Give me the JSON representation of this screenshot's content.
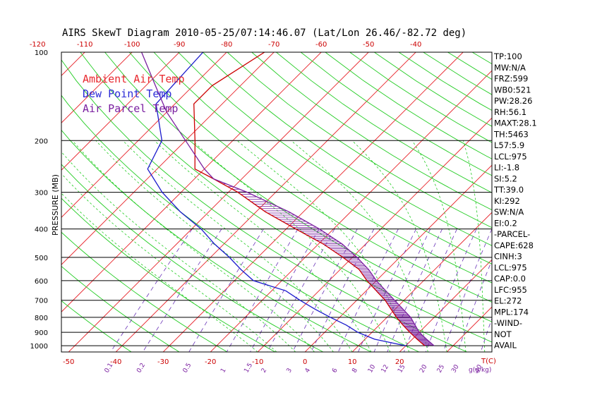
{
  "chart_data": {
    "type": "line",
    "title": "AIRS SkewT Diagram 2010-05-25/07:14:46.07 (Lat/Lon 26.46/-82.72 deg)",
    "ylabel": "PRESSURE (MB)",
    "xlabel": "T(C)",
    "mixing_ratio_label": "g(g/kg)",
    "y_ticks": [
      "100",
      "200",
      "300",
      "400",
      "500",
      "600",
      "700",
      "800",
      "900",
      "1000"
    ],
    "top_ticks": [
      "-120",
      "-110",
      "-100",
      "-90",
      "-80",
      "-70",
      "-60",
      "-50",
      "-40"
    ],
    "bottom_ticks": [
      "-50",
      "-40",
      "-30",
      "-20",
      "-10",
      "0",
      "10",
      "20"
    ],
    "mixing_ratio_ticks": [
      "0.1",
      "0.2",
      "0.5",
      "1",
      "1.5",
      "2",
      "3",
      "4",
      "6",
      "8",
      "10",
      "12",
      "15",
      "20",
      "25",
      "30",
      "40"
    ],
    "legend": [
      {
        "label": "Ambient Air Temp",
        "color": "#e8282e"
      },
      {
        "label": "Dew Point Temp",
        "color": "#2b2bd6"
      },
      {
        "label": "Air Parcel Temp",
        "color": "#7a1fa0"
      }
    ],
    "series": [
      {
        "name": "Ambient Air Temp",
        "color": "#cc0000",
        "points": [
          [
            100,
            -72
          ],
          [
            130,
            -76
          ],
          [
            150,
            -76
          ],
          [
            200,
            -68
          ],
          [
            250,
            -62
          ],
          [
            270,
            -56
          ],
          [
            300,
            -48
          ],
          [
            350,
            -38
          ],
          [
            400,
            -28
          ],
          [
            450,
            -19
          ],
          [
            500,
            -12
          ],
          [
            550,
            -6
          ],
          [
            600,
            -2
          ],
          [
            700,
            6
          ],
          [
            800,
            12
          ],
          [
            850,
            15
          ],
          [
            900,
            18
          ],
          [
            950,
            21
          ],
          [
            1000,
            24
          ]
        ]
      },
      {
        "name": "Dew Point Temp",
        "color": "#1a1acc",
        "points": [
          [
            100,
            -85
          ],
          [
            150,
            -84
          ],
          [
            200,
            -75
          ],
          [
            250,
            -72
          ],
          [
            300,
            -64
          ],
          [
            350,
            -56
          ],
          [
            400,
            -48
          ],
          [
            450,
            -42
          ],
          [
            500,
            -36
          ],
          [
            550,
            -31
          ],
          [
            600,
            -26
          ],
          [
            650,
            -17
          ],
          [
            700,
            -12
          ],
          [
            750,
            -7
          ],
          [
            800,
            -2
          ],
          [
            850,
            3
          ],
          [
            900,
            7
          ],
          [
            950,
            12
          ],
          [
            1000,
            20
          ]
        ]
      },
      {
        "name": "Air Parcel Temp",
        "color": "#7a1fa0",
        "points": [
          [
            100,
            -98
          ],
          [
            130,
            -88
          ],
          [
            160,
            -80
          ],
          [
            200,
            -70
          ],
          [
            250,
            -60
          ],
          [
            270,
            -56
          ],
          [
            300,
            -46
          ],
          [
            350,
            -33
          ],
          [
            400,
            -23
          ],
          [
            450,
            -15
          ],
          [
            500,
            -9
          ],
          [
            550,
            -4
          ],
          [
            600,
            0
          ],
          [
            700,
            8
          ],
          [
            800,
            15
          ],
          [
            900,
            20
          ],
          [
            950,
            23
          ],
          [
            1000,
            26
          ]
        ]
      }
    ],
    "indices": [
      "TP:100",
      "MW:N/A",
      "FRZ:599",
      "WB0:521",
      "PW:28.26",
      "RH:56.1",
      "MAXT:28.1",
      "TH:5463",
      "L57:5.9",
      "LCL:975",
      "LI:-1.8",
      "SI:5.2",
      "TT:39.0",
      "KI:292",
      "SW:N/A",
      "EI:0.2",
      "-PARCEL-",
      "CAPE:628",
      "CINH:3",
      "LCL:975",
      "CAP:0.0",
      "LFC:955",
      "EL:272",
      "MPL:174",
      "-WIND-",
      "NOT",
      "AVAIL"
    ],
    "colors": {
      "isotherm": "#e8282e",
      "dry_adiabat": "#22cc22",
      "moist_adiabat": "#22cc22",
      "mixing_ratio": "#6a33b8",
      "isobar": "#000000"
    }
  }
}
